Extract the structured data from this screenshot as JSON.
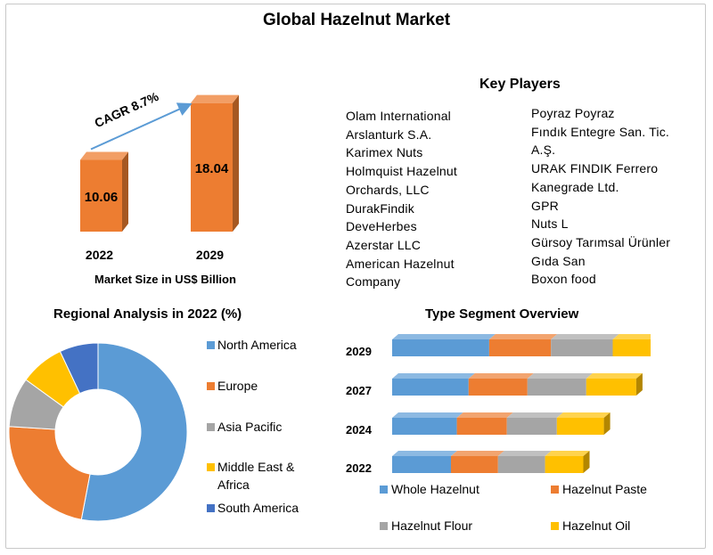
{
  "title": "Global Hazelnut Market",
  "chart_data": [
    {
      "type": "bar",
      "categories": [
        "2022",
        "2029"
      ],
      "values": [
        10.06,
        18.04
      ],
      "value_labels": [
        "10.06",
        "18.04"
      ],
      "xlabel": "Market Size in US$ Billion",
      "annotation": "CAGR 8.7%",
      "ylim": [
        0,
        20
      ],
      "color": "#ED7D31"
    },
    {
      "type": "pie",
      "title": "Regional Analysis in 2022 (%)",
      "style": "donut",
      "labels": [
        "North America",
        "Europe",
        "Asia Pacific",
        "Middle East & Africa",
        "South America"
      ],
      "values": [
        53,
        23,
        9,
        8,
        7
      ],
      "colors": [
        "#5B9BD5",
        "#ED7D31",
        "#A5A5A5",
        "#FFC000",
        "#4472C4"
      ],
      "legend": "right"
    },
    {
      "type": "bar",
      "orientation": "horizontal-stacked",
      "title": "Type Segment Overview",
      "categories": [
        "2029",
        "2027",
        "2024",
        "2022"
      ],
      "series": [
        {
          "name": "Whole Hazelnut",
          "values": [
            33,
            26,
            22,
            20
          ]
        },
        {
          "name": "Hazelnut Paste",
          "values": [
            21,
            20,
            17,
            16
          ]
        },
        {
          "name": "Hazelnut Flour",
          "values": [
            21,
            20,
            17,
            16
          ]
        },
        {
          "name": "Hazelnut Oil",
          "values": [
            19,
            17,
            16,
            13
          ]
        }
      ],
      "colors": [
        "#5B9BD5",
        "#ED7D31",
        "#A5A5A5",
        "#FFC000"
      ],
      "legend": "bottom"
    }
  ],
  "key_players": {
    "title": "Key Players",
    "left": [
      "Olam International",
      "Arslanturk S.A.",
      "Karimex Nuts",
      "Holmquist Hazelnut",
      "Orchards, LLC",
      "DurakFindik",
      "DeveHerbes",
      "Azerstar LLC",
      "American Hazelnut",
      "Company"
    ],
    "right": [
      "Poyraz Poyraz",
      "Fındık Entegre San. Tic.",
      "A.Ş.",
      "URAK FINDIK Ferrero",
      "Kanegrade Ltd.",
      "GPR",
      "Nuts L",
      "Gürsoy Tarımsal Ürünler",
      "Gıda San",
      "Boxon food"
    ]
  }
}
